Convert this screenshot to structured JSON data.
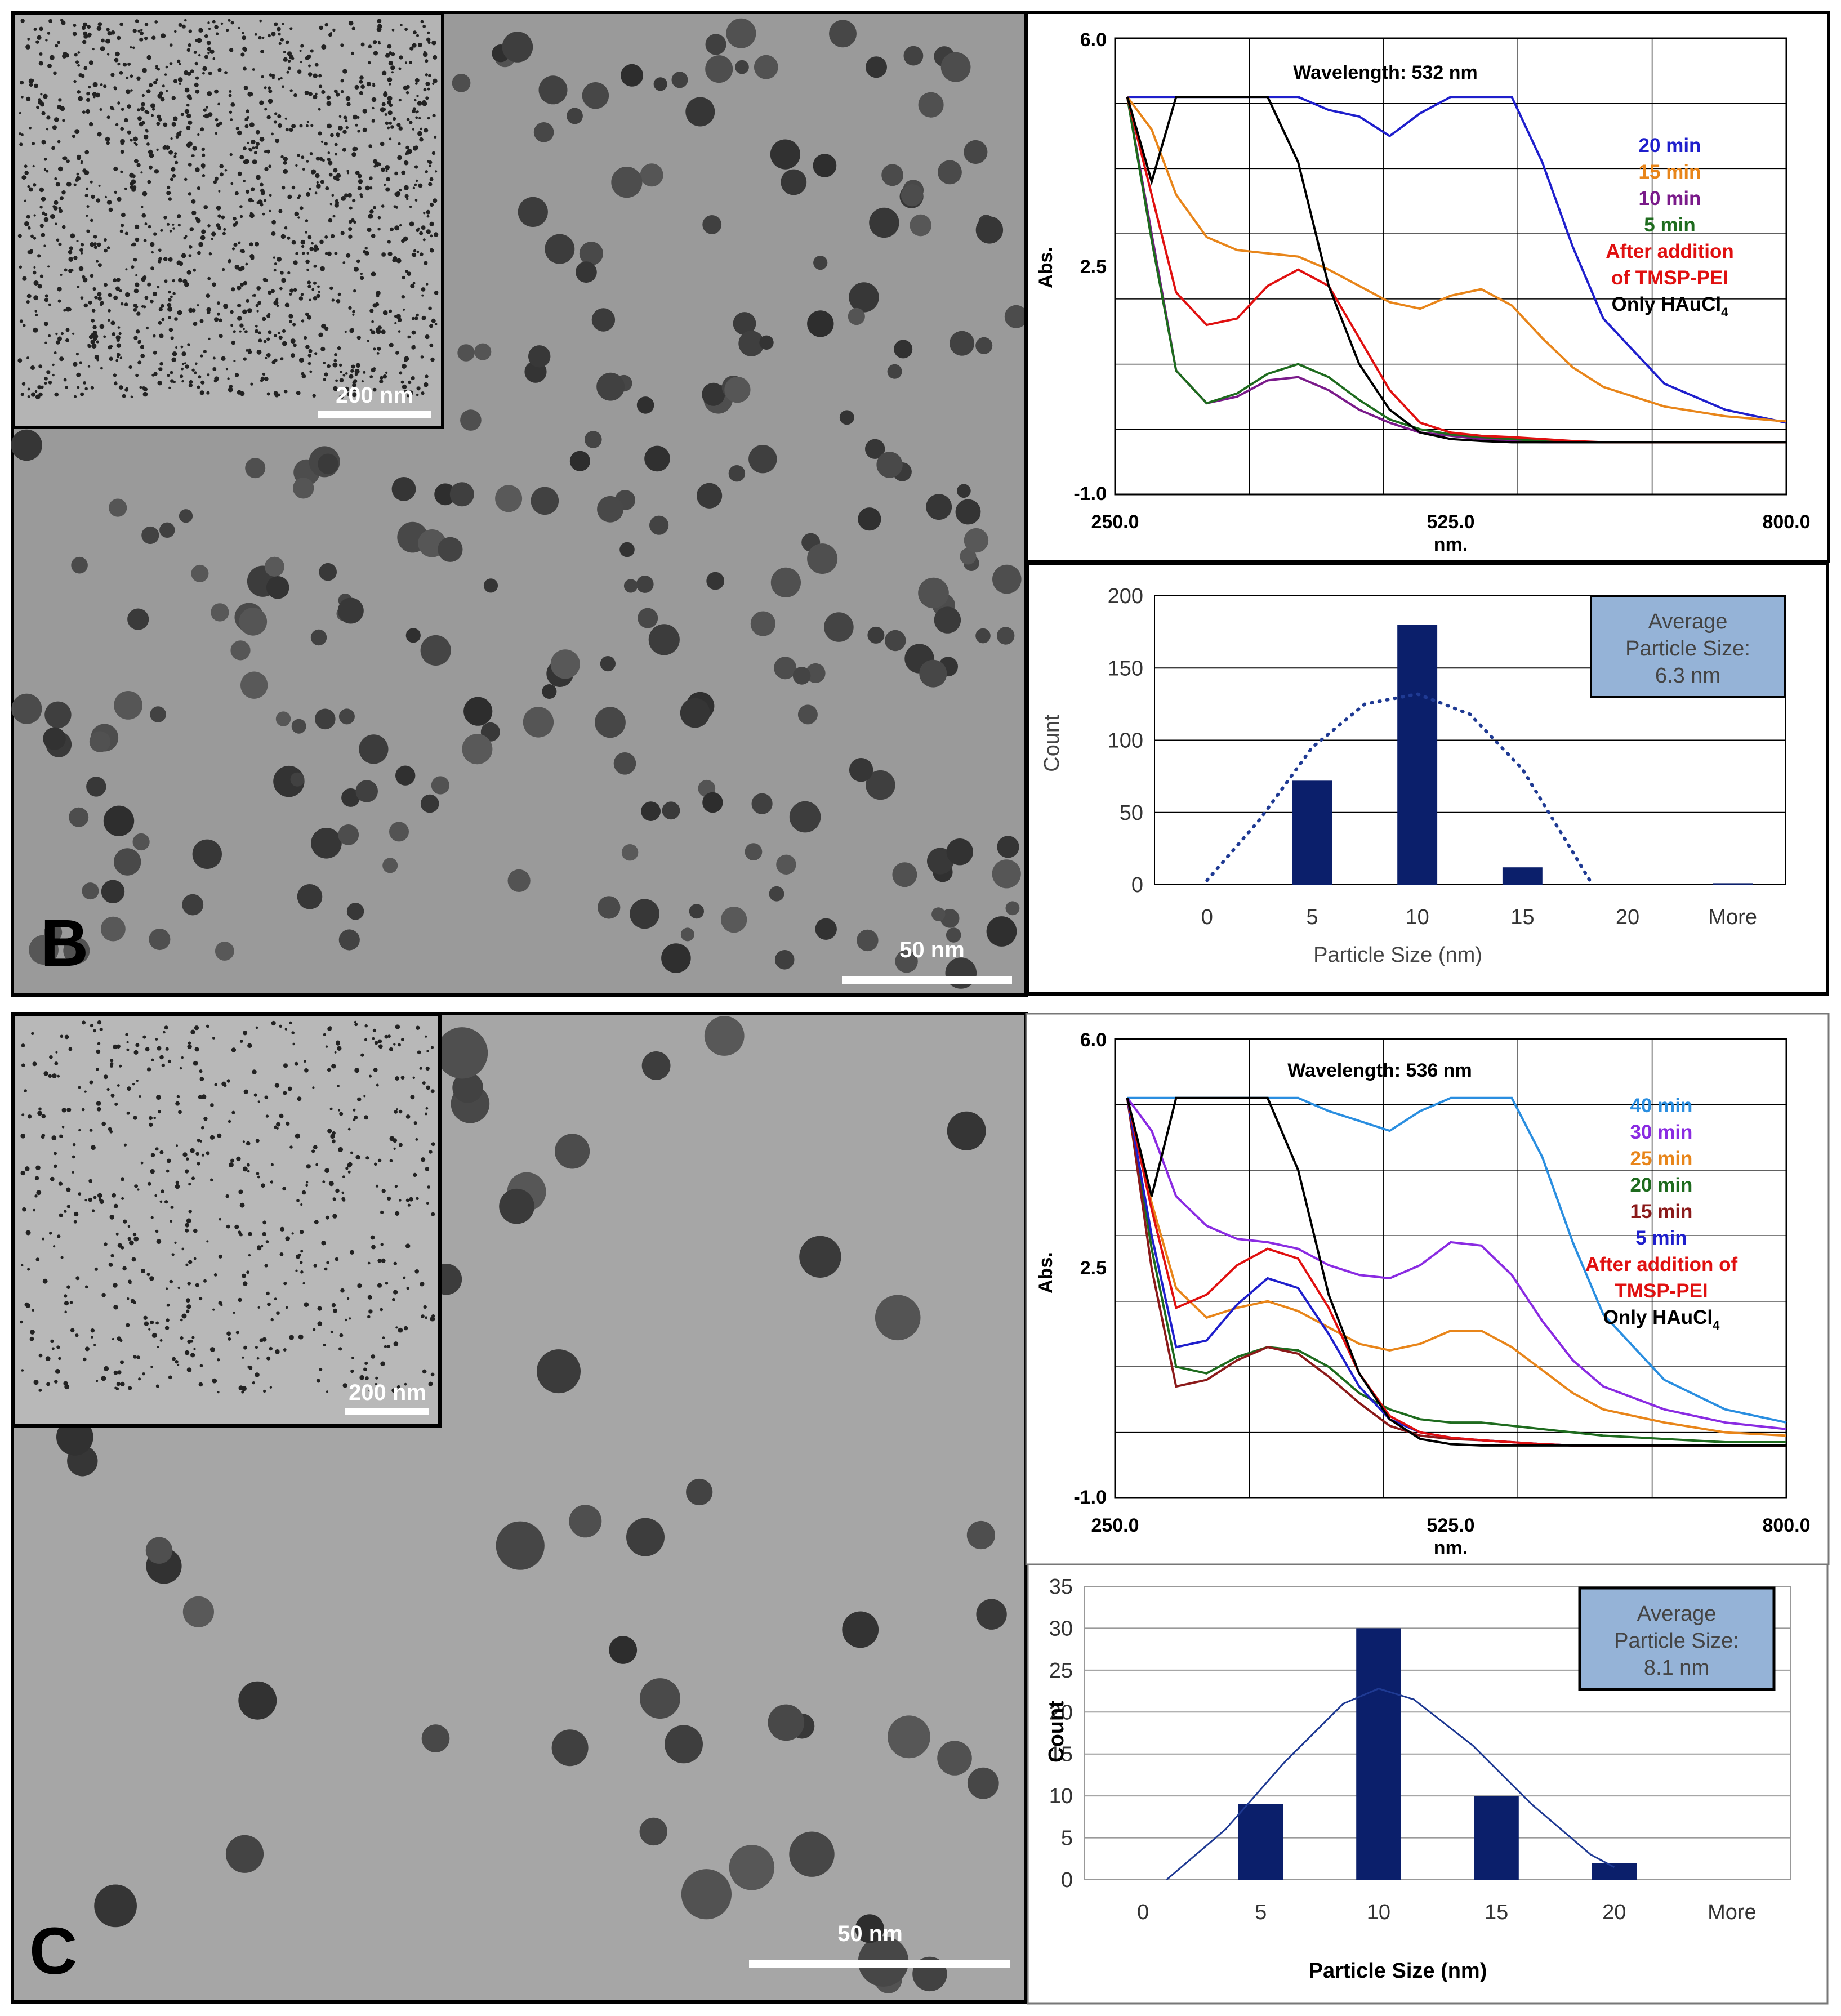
{
  "panels": [
    {
      "letter": "B",
      "tem": {
        "scalebar_label": "50 nm",
        "inset_scalebar_label": "200 nm"
      },
      "uvvis": {
        "wavelength_label": "Wavelength: 532 nm",
        "ylabel": "Abs.",
        "xlabel": "nm.",
        "yticks": [
          "6.0",
          "2.5",
          "-1.0"
        ],
        "xticks": [
          "250.0",
          "525.0",
          "800.0"
        ],
        "legend": [
          {
            "text": "20 min",
            "color": "#1f1fcc"
          },
          {
            "text": "15 min",
            "color": "#e8851a"
          },
          {
            "text": "10 min",
            "color": "#7a1a8a"
          },
          {
            "text": "5 min",
            "color": "#1e6b1e"
          },
          {
            "text": "After addition",
            "color": "#e01010"
          },
          {
            "text": "of TMSP-PEI",
            "color": "#e01010"
          },
          {
            "text": "Only HAuCl",
            "sub": "4",
            "color": "#000000"
          }
        ]
      },
      "histogram": {
        "stats_lines": [
          "Average",
          "Particle Size:",
          "6.3 nm"
        ],
        "ylabel": "Count",
        "xlabel": "Particle Size (nm)",
        "yticks": [
          "200",
          "150",
          "100",
          "50",
          "0"
        ],
        "xticks": [
          "0",
          "5",
          "10",
          "15",
          "20",
          "More"
        ]
      }
    },
    {
      "letter": "C",
      "tem": {
        "scalebar_label": "50 nm",
        "inset_scalebar_label": "200 nm"
      },
      "uvvis": {
        "wavelength_label": "Wavelength: 536 nm",
        "ylabel": "Abs.",
        "xlabel": "nm.",
        "yticks": [
          "6.0",
          "2.5",
          "-1.0"
        ],
        "xticks": [
          "250.0",
          "525.0",
          "800.0"
        ],
        "legend": [
          {
            "text": "40 min",
            "color": "#2a8ee0"
          },
          {
            "text": "30 min",
            "color": "#8a2be2"
          },
          {
            "text": "25 min",
            "color": "#e8851a"
          },
          {
            "text": "20 min",
            "color": "#1e6b1e"
          },
          {
            "text": "15 min",
            "color": "#8b1a1a"
          },
          {
            "text": "5 min",
            "color": "#1f1fcc"
          },
          {
            "text": "After addition of",
            "color": "#e01010"
          },
          {
            "text": "TMSP-PEI",
            "color": "#e01010"
          },
          {
            "text": "Only HAuCl",
            "sub": "4",
            "color": "#000000"
          }
        ]
      },
      "histogram": {
        "stats_lines": [
          "Average",
          "Particle Size:",
          "8.1 nm"
        ],
        "ylabel": "Count",
        "xlabel": "Particle Size (nm)",
        "yticks": [
          "35",
          "30",
          "25",
          "20",
          "15",
          "10",
          "5",
          "0"
        ],
        "xticks": [
          "0",
          "5",
          "10",
          "15",
          "20",
          "More"
        ]
      }
    }
  ],
  "chart_data": [
    {
      "type": "line",
      "panel": "B",
      "title": "Wavelength: 532 nm",
      "xlabel": "nm.",
      "ylabel": "Abs.",
      "xlim": [
        250,
        800
      ],
      "ylim": [
        -1.0,
        6.0
      ],
      "x": [
        260,
        280,
        300,
        325,
        350,
        375,
        400,
        425,
        450,
        475,
        500,
        525,
        550,
        575,
        600,
        625,
        650,
        700,
        750,
        800
      ],
      "series": [
        {
          "name": "20 min",
          "color": "#1f1fcc",
          "values": [
            5.1,
            5.1,
            5.1,
            5.1,
            5.1,
            5.1,
            5.1,
            4.9,
            4.8,
            4.5,
            4.85,
            5.1,
            5.1,
            5.1,
            4.1,
            2.8,
            1.7,
            0.7,
            0.3,
            0.1
          ]
        },
        {
          "name": "15 min",
          "color": "#e8851a",
          "values": [
            5.1,
            4.6,
            3.6,
            2.95,
            2.75,
            2.7,
            2.65,
            2.45,
            2.2,
            1.95,
            1.85,
            2.05,
            2.15,
            1.9,
            1.4,
            0.95,
            0.65,
            0.35,
            0.2,
            0.12
          ]
        },
        {
          "name": "10 min",
          "color": "#7a1a8a",
          "values": [
            5.1,
            3.0,
            0.9,
            0.4,
            0.5,
            0.75,
            0.8,
            0.6,
            0.3,
            0.1,
            -0.05,
            -0.1,
            -0.15,
            -0.18,
            -0.2,
            -0.2,
            -0.2,
            -0.2,
            -0.2,
            -0.2
          ]
        },
        {
          "name": "5 min",
          "color": "#1e6b1e",
          "values": [
            5.1,
            2.9,
            0.9,
            0.4,
            0.55,
            0.85,
            1.0,
            0.8,
            0.45,
            0.15,
            0.0,
            -0.08,
            -0.12,
            -0.15,
            -0.18,
            -0.2,
            -0.2,
            -0.2,
            -0.2,
            -0.2
          ]
        },
        {
          "name": "After addition of TMSP-PEI",
          "color": "#e01010",
          "values": [
            5.1,
            3.6,
            2.1,
            1.6,
            1.7,
            2.2,
            2.45,
            2.2,
            1.4,
            0.6,
            0.1,
            -0.05,
            -0.1,
            -0.12,
            -0.15,
            -0.18,
            -0.2,
            -0.2,
            -0.2,
            -0.2
          ]
        },
        {
          "name": "Only HAuCl4",
          "color": "#000000",
          "values": [
            5.1,
            3.8,
            5.1,
            5.1,
            5.1,
            5.1,
            4.1,
            2.2,
            1.0,
            0.3,
            -0.05,
            -0.15,
            -0.18,
            -0.2,
            -0.2,
            -0.2,
            -0.2,
            -0.2,
            -0.2,
            -0.2
          ]
        }
      ]
    },
    {
      "type": "bar",
      "panel": "B",
      "xlabel": "Particle Size (nm)",
      "ylabel": "Count",
      "ylim": [
        0,
        200
      ],
      "categories": [
        "0",
        "5",
        "10",
        "15",
        "20",
        "More"
      ],
      "values": [
        0,
        72,
        180,
        12,
        0,
        1
      ],
      "annotation": "Average Particle Size: 6.3 nm",
      "fit_curve": {
        "style": "dotted",
        "x": [
          0,
          2.5,
          5,
          7.5,
          10,
          12.5,
          15,
          17.5,
          18.2
        ],
        "values": [
          3,
          45,
          95,
          125,
          132,
          118,
          80,
          20,
          3
        ]
      }
    },
    {
      "type": "line",
      "panel": "C",
      "title": "Wavelength: 536 nm",
      "xlabel": "nm.",
      "ylabel": "Abs.",
      "xlim": [
        250,
        800
      ],
      "ylim": [
        -1.0,
        6.0
      ],
      "x": [
        260,
        280,
        300,
        325,
        350,
        375,
        400,
        425,
        450,
        475,
        500,
        525,
        550,
        575,
        600,
        625,
        650,
        700,
        750,
        800
      ],
      "series": [
        {
          "name": "40 min",
          "color": "#2a8ee0",
          "values": [
            5.1,
            5.1,
            5.1,
            5.1,
            5.1,
            5.1,
            5.1,
            4.9,
            4.75,
            4.6,
            4.9,
            5.1,
            5.1,
            5.1,
            4.2,
            2.9,
            1.8,
            0.8,
            0.35,
            0.15
          ]
        },
        {
          "name": "30 min",
          "color": "#8a2be2",
          "values": [
            5.1,
            4.6,
            3.6,
            3.15,
            2.95,
            2.9,
            2.8,
            2.55,
            2.4,
            2.35,
            2.55,
            2.9,
            2.85,
            2.4,
            1.7,
            1.1,
            0.7,
            0.35,
            0.15,
            0.05
          ]
        },
        {
          "name": "25 min",
          "color": "#e8851a",
          "values": [
            5.1,
            3.5,
            2.2,
            1.75,
            1.9,
            2.0,
            1.85,
            1.6,
            1.35,
            1.25,
            1.35,
            1.55,
            1.55,
            1.3,
            0.95,
            0.6,
            0.35,
            0.15,
            0.0,
            -0.05
          ]
        },
        {
          "name": "20 min",
          "color": "#1e6b1e",
          "values": [
            5.1,
            2.8,
            1.0,
            0.9,
            1.15,
            1.3,
            1.25,
            1.0,
            0.6,
            0.35,
            0.2,
            0.15,
            0.15,
            0.1,
            0.05,
            0.0,
            -0.05,
            -0.1,
            -0.15,
            -0.15
          ]
        },
        {
          "name": "15 min",
          "color": "#8b1a1a",
          "values": [
            5.1,
            2.5,
            0.7,
            0.8,
            1.1,
            1.3,
            1.2,
            0.85,
            0.45,
            0.1,
            -0.05,
            -0.1,
            -0.12,
            -0.15,
            -0.18,
            -0.2,
            -0.2,
            -0.2,
            -0.2,
            -0.2
          ]
        },
        {
          "name": "5 min",
          "color": "#1f1fcc",
          "values": [
            5.1,
            3.0,
            1.3,
            1.4,
            1.95,
            2.35,
            2.2,
            1.5,
            0.7,
            0.2,
            0.0,
            -0.08,
            -0.12,
            -0.15,
            -0.18,
            -0.2,
            -0.2,
            -0.2,
            -0.2,
            -0.2
          ]
        },
        {
          "name": "After addition of TMSP-PEI",
          "color": "#e01010",
          "values": [
            5.1,
            3.4,
            1.9,
            2.1,
            2.55,
            2.8,
            2.65,
            1.9,
            0.9,
            0.25,
            0.0,
            -0.08,
            -0.12,
            -0.15,
            -0.18,
            -0.2,
            -0.2,
            -0.2,
            -0.2,
            -0.2
          ]
        },
        {
          "name": "Only HAuCl4",
          "color": "#000000",
          "values": [
            5.1,
            3.6,
            5.1,
            5.1,
            5.1,
            5.1,
            4.0,
            2.1,
            0.9,
            0.2,
            -0.1,
            -0.18,
            -0.2,
            -0.2,
            -0.2,
            -0.2,
            -0.2,
            -0.2,
            -0.2,
            -0.2
          ]
        }
      ]
    },
    {
      "type": "bar",
      "panel": "C",
      "xlabel": "Particle Size (nm)",
      "ylabel": "Count",
      "ylim": [
        0,
        35
      ],
      "categories": [
        "0",
        "5",
        "10",
        "15",
        "20",
        "More"
      ],
      "values": [
        0,
        9,
        30,
        10,
        2,
        0
      ],
      "annotation": "Average Particle Size: 8.1 nm",
      "fit_curve": {
        "style": "solid",
        "x": [
          1,
          3.5,
          6,
          8.5,
          10,
          11.5,
          14,
          16.5,
          19,
          20
        ],
        "values": [
          0,
          6,
          14,
          21,
          22.8,
          21.5,
          16,
          9,
          3,
          1.5
        ]
      }
    }
  ]
}
